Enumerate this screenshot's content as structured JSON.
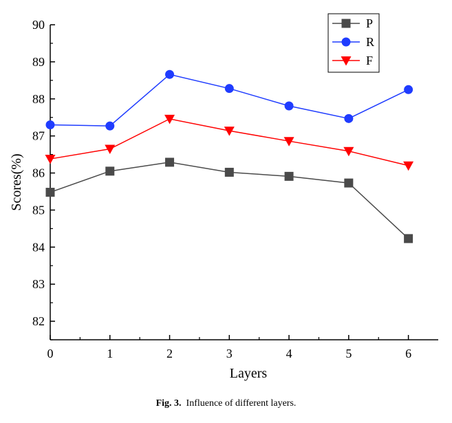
{
  "chart_data": {
    "type": "line",
    "x": [
      0,
      1,
      2,
      3,
      4,
      5,
      6
    ],
    "xlabel": "Layers",
    "ylabel": "Scores(%)",
    "xlim": [
      0,
      6.5
    ],
    "ylim": [
      81.5,
      90
    ],
    "xticks": [
      "0",
      "1",
      "2",
      "3",
      "4",
      "5",
      "6"
    ],
    "yticks": [
      "82",
      "83",
      "84",
      "85",
      "86",
      "87",
      "88",
      "89",
      "90"
    ],
    "legend_position": "top-right",
    "series": [
      {
        "name": "P",
        "color": "#4a4a4a",
        "marker": "square",
        "values": [
          85.48,
          86.05,
          86.29,
          86.02,
          85.91,
          85.73,
          84.23
        ]
      },
      {
        "name": "R",
        "color": "#1f3cff",
        "marker": "circle",
        "values": [
          87.3,
          87.27,
          88.66,
          88.28,
          87.81,
          87.47,
          88.25
        ]
      },
      {
        "name": "F",
        "color": "#ff0000",
        "marker": "triangle-down",
        "values": [
          86.38,
          86.65,
          87.46,
          87.14,
          86.86,
          86.59,
          86.2
        ]
      }
    ]
  },
  "caption": {
    "label": "Fig. 3.",
    "text": "Influence of different layers."
  }
}
